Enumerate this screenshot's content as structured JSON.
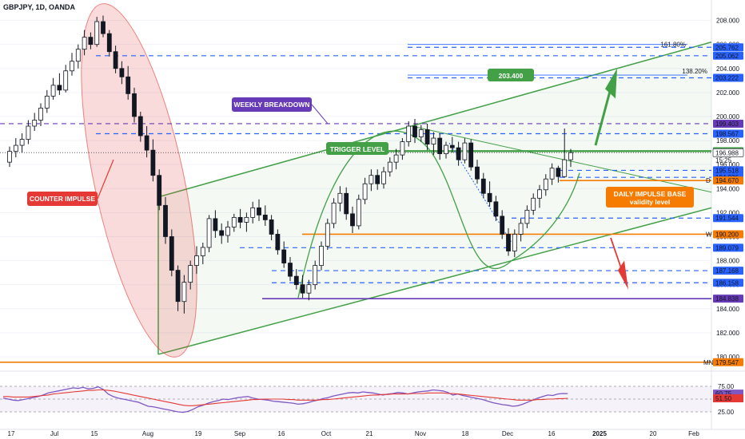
{
  "title": "GBPJPY, 1D, OANDA",
  "colors": {
    "up": "#ffffff",
    "down": "#131722",
    "green": "#43a047",
    "blue": "#2962ff",
    "purple": "#673ab7",
    "orange": "#f57c00",
    "red": "#e53935",
    "rsi": "#7e57c2",
    "rsi_ma": "#e53935"
  },
  "labels": {
    "counter_impulse": "COUNTER IMPULSE",
    "weekly_breakdown": "WEEKLY BREAKDOWN",
    "trigger_level": "TRIGGER LEVEL",
    "target": "203.400",
    "daily_base_1": "DAILY IMPULSE BASE",
    "daily_base_2": "validity level",
    "fib_138": "138.20%",
    "fib_161": "161.80%",
    "tag_w": "W",
    "tag_d": "D",
    "tag_mn": "MN",
    "countdown": "15:25"
  },
  "chart_data": {
    "type": "candlestick",
    "symbol": "GBPJPY",
    "interval": "1D",
    "source": "OANDA",
    "ylim": [
      179.0,
      209.5
    ],
    "price_ticks": [
      180.0,
      182.0,
      184.0,
      186.0,
      188.0,
      190.0,
      192.0,
      194.0,
      196.0,
      198.0,
      200.0,
      202.0,
      204.0,
      206.0,
      208.0
    ],
    "x_ticks": [
      "17",
      "Jul",
      "15",
      "Aug",
      "19",
      "Sep",
      "16",
      "Oct",
      "21",
      "Nov",
      "18",
      "Dec",
      "16",
      "2025",
      "20",
      "Feb"
    ],
    "levels": [
      {
        "value": 205.762,
        "label": "205.762",
        "color": "#2962ff",
        "style": "dashed"
      },
      {
        "value": 205.062,
        "label": "205.062",
        "color": "#2962ff",
        "style": "dashed"
      },
      {
        "value": 203.222,
        "label": "203.222",
        "color": "#2962ff",
        "style": "dashed"
      },
      {
        "value": 199.403,
        "label": "199.403",
        "color": "#673ab7",
        "style": "dashed"
      },
      {
        "value": 198.567,
        "label": "198.567",
        "color": "#2962ff",
        "style": "dashed"
      },
      {
        "value": 197.117,
        "label": "197.117",
        "color": "#43a047",
        "style": "solid"
      },
      {
        "value": 196.988,
        "label": "196.988",
        "color": "#131722",
        "style": "current"
      },
      {
        "value": 195.518,
        "label": "195.518",
        "color": "#2962ff",
        "style": "dashed"
      },
      {
        "value": 194.936,
        "label": "194.936",
        "color": "#2962ff",
        "style": "dashed"
      },
      {
        "value": 194.67,
        "label": "194.670",
        "color": "#f57c00",
        "style": "solid"
      },
      {
        "value": 191.544,
        "label": "191.544",
        "color": "#2962ff",
        "style": "dashed"
      },
      {
        "value": 190.2,
        "label": "190.200",
        "color": "#f57c00",
        "style": "solid"
      },
      {
        "value": 189.079,
        "label": "189.079",
        "color": "#2962ff",
        "style": "dashed"
      },
      {
        "value": 187.168,
        "label": "187.168",
        "color": "#2962ff",
        "style": "dashed"
      },
      {
        "value": 186.158,
        "label": "186.158",
        "color": "#2962ff",
        "style": "dashed"
      },
      {
        "value": 184.838,
        "label": "184.838",
        "color": "#673ab7",
        "style": "solid"
      },
      {
        "value": 179.547,
        "label": "179.547",
        "color": "#f57c00",
        "style": "solid"
      }
    ],
    "rsi": {
      "ticks": [
        75.0,
        50.0,
        25.0
      ],
      "current": 60.75,
      "ma": 51.5,
      "labels": [
        "60.75",
        "51.50"
      ],
      "values": [
        52,
        50,
        48,
        47,
        49,
        51,
        53,
        55,
        58,
        62,
        64,
        66,
        68,
        70,
        72,
        71,
        73,
        70,
        71,
        74,
        69,
        60,
        55,
        52,
        50,
        48,
        46,
        44,
        40,
        36,
        35,
        33,
        31,
        29,
        27,
        25,
        24,
        26,
        30,
        35,
        38,
        42,
        45,
        47,
        50,
        49,
        51,
        53,
        54,
        55,
        52,
        50,
        49,
        48,
        46,
        45,
        44,
        43,
        42,
        40,
        41,
        43,
        46,
        48,
        51,
        53,
        56,
        58,
        60,
        62,
        63,
        62,
        64,
        63,
        62,
        60,
        58,
        60,
        61,
        63,
        62,
        60,
        62,
        64,
        65,
        66,
        68,
        67,
        66,
        63,
        58,
        60,
        57,
        55,
        53,
        51,
        49,
        46,
        43,
        41,
        39,
        38,
        36,
        37,
        40,
        44,
        48,
        52,
        55,
        58,
        57,
        60,
        61,
        60.75
      ],
      "ma_values": [
        55,
        55,
        54,
        54,
        54,
        54,
        55,
        56,
        57,
        58,
        60,
        61,
        62,
        63,
        64,
        65,
        66,
        67,
        67,
        68,
        68,
        67,
        66,
        64,
        62,
        60,
        58,
        56,
        54,
        52,
        50,
        48,
        46,
        44,
        42,
        40,
        38,
        37,
        37,
        38,
        39,
        40,
        41,
        42,
        43,
        44,
        45,
        46,
        47,
        48,
        49,
        49,
        50,
        50,
        50,
        50,
        50,
        49,
        49,
        48,
        48,
        48,
        48,
        48,
        49,
        49,
        50,
        51,
        52,
        53,
        54,
        55,
        56,
        57,
        58,
        58,
        59,
        59,
        60,
        60,
        60,
        60,
        61,
        61,
        61,
        62,
        62,
        62,
        62,
        61,
        61,
        60,
        59,
        58,
        57,
        56,
        55,
        54,
        53,
        52,
        51,
        50,
        49,
        48,
        48,
        48,
        48,
        49,
        49,
        50,
        50,
        51,
        51,
        51.5
      ]
    },
    "candles": [
      [
        196.2,
        197.5,
        195.8,
        197.1
      ],
      [
        197.1,
        198.2,
        196.6,
        197.6
      ],
      [
        197.6,
        198.6,
        197.0,
        198.1
      ],
      [
        198.1,
        199.7,
        197.7,
        199.2
      ],
      [
        199.2,
        200.3,
        198.8,
        199.7
      ],
      [
        199.7,
        201.1,
        199.2,
        200.7
      ],
      [
        200.7,
        202.2,
        200.3,
        201.7
      ],
      [
        201.7,
        203.2,
        201.4,
        202.6
      ],
      [
        202.6,
        203.6,
        201.8,
        202.2
      ],
      [
        202.2,
        204.3,
        202.0,
        203.8
      ],
      [
        203.8,
        205.3,
        203.4,
        204.6
      ],
      [
        204.6,
        206.0,
        204.0,
        205.6
      ],
      [
        205.6,
        207.2,
        205.1,
        206.6
      ],
      [
        206.6,
        207.0,
        205.6,
        206.0
      ],
      [
        206.0,
        208.3,
        205.8,
        207.9
      ],
      [
        207.9,
        208.4,
        206.6,
        206.9
      ],
      [
        206.9,
        207.2,
        205.0,
        205.4
      ],
      [
        205.4,
        205.9,
        203.6,
        204.0
      ],
      [
        204.0,
        204.6,
        202.7,
        203.3
      ],
      [
        203.3,
        204.2,
        201.4,
        201.9
      ],
      [
        201.9,
        202.4,
        199.5,
        200.0
      ],
      [
        200.0,
        200.4,
        197.9,
        198.4
      ],
      [
        198.4,
        199.2,
        196.6,
        197.2
      ],
      [
        197.2,
        198.1,
        194.6,
        195.1
      ],
      [
        195.1,
        195.6,
        192.2,
        192.6
      ],
      [
        192.6,
        193.3,
        189.4,
        190.0
      ],
      [
        190.0,
        190.6,
        186.7,
        187.2
      ],
      [
        187.2,
        187.6,
        183.8,
        184.6
      ],
      [
        184.6,
        186.8,
        183.6,
        186.2
      ],
      [
        186.2,
        188.0,
        185.6,
        187.6
      ],
      [
        187.6,
        189.2,
        186.9,
        188.4
      ],
      [
        188.4,
        189.5,
        187.7,
        189.1
      ],
      [
        189.1,
        191.8,
        188.7,
        191.5
      ],
      [
        191.5,
        192.2,
        189.9,
        190.5
      ],
      [
        190.5,
        191.1,
        189.4,
        190.1
      ],
      [
        190.1,
        191.3,
        189.5,
        190.8
      ],
      [
        190.8,
        191.9,
        190.4,
        191.6
      ],
      [
        191.6,
        192.3,
        190.7,
        191.2
      ],
      [
        191.2,
        192.0,
        190.4,
        191.6
      ],
      [
        191.6,
        192.9,
        191.1,
        192.4
      ],
      [
        192.4,
        193.1,
        191.3,
        191.8
      ],
      [
        191.8,
        192.6,
        190.9,
        191.4
      ],
      [
        191.4,
        191.8,
        189.7,
        190.2
      ],
      [
        190.2,
        190.6,
        188.5,
        188.9
      ],
      [
        188.9,
        189.6,
        187.4,
        187.8
      ],
      [
        187.8,
        188.3,
        186.3,
        186.7
      ],
      [
        186.7,
        187.3,
        185.6,
        186.0
      ],
      [
        186.0,
        186.8,
        184.9,
        185.3
      ],
      [
        185.3,
        186.4,
        184.7,
        186.0
      ],
      [
        186.0,
        188.0,
        185.6,
        187.6
      ],
      [
        187.6,
        189.6,
        187.2,
        189.2
      ],
      [
        189.2,
        191.5,
        188.9,
        191.1
      ],
      [
        191.1,
        193.2,
        190.7,
        192.8
      ],
      [
        192.8,
        194.2,
        192.1,
        193.6
      ],
      [
        193.6,
        194.1,
        191.4,
        191.9
      ],
      [
        191.9,
        192.5,
        190.3,
        190.9
      ],
      [
        190.9,
        193.5,
        190.6,
        193.1
      ],
      [
        193.1,
        194.9,
        192.7,
        194.4
      ],
      [
        194.4,
        195.6,
        193.8,
        195.1
      ],
      [
        195.1,
        195.6,
        193.9,
        194.4
      ],
      [
        194.4,
        195.8,
        194.0,
        195.4
      ],
      [
        195.4,
        196.6,
        195.0,
        196.2
      ],
      [
        196.2,
        197.3,
        195.6,
        196.8
      ],
      [
        196.8,
        198.2,
        196.4,
        197.9
      ],
      [
        197.9,
        199.6,
        197.5,
        199.2
      ],
      [
        199.2,
        199.8,
        197.8,
        198.3
      ],
      [
        198.3,
        199.3,
        197.9,
        198.9
      ],
      [
        198.9,
        199.4,
        197.2,
        197.7
      ],
      [
        197.7,
        198.7,
        196.8,
        198.2
      ],
      [
        198.2,
        198.6,
        196.4,
        196.9
      ],
      [
        196.9,
        197.9,
        196.5,
        197.6
      ],
      [
        197.6,
        198.3,
        197.0,
        197.4
      ],
      [
        197.4,
        197.9,
        195.9,
        196.4
      ],
      [
        196.4,
        198.2,
        196.1,
        197.8
      ],
      [
        197.8,
        198.1,
        195.5,
        195.8
      ],
      [
        195.8,
        196.4,
        194.4,
        194.8
      ],
      [
        194.8,
        195.3,
        193.2,
        193.6
      ],
      [
        193.6,
        194.6,
        192.5,
        192.9
      ],
      [
        192.9,
        193.4,
        191.3,
        191.7
      ],
      [
        191.7,
        192.2,
        189.8,
        190.2
      ],
      [
        190.2,
        190.7,
        188.4,
        188.8
      ],
      [
        188.8,
        190.6,
        188.3,
        190.2
      ],
      [
        190.2,
        191.5,
        189.6,
        191.1
      ],
      [
        191.1,
        192.6,
        190.7,
        192.2
      ],
      [
        192.2,
        193.6,
        191.8,
        193.2
      ],
      [
        193.2,
        194.3,
        192.4,
        193.9
      ],
      [
        193.9,
        195.2,
        193.4,
        194.8
      ],
      [
        194.8,
        196.1,
        194.3,
        195.7
      ],
      [
        195.7,
        195.9,
        194.5,
        195.0
      ],
      [
        195.0,
        199.0,
        194.9,
        196.4
      ],
      [
        196.4,
        197.3,
        195.8,
        196.99
      ]
    ]
  }
}
